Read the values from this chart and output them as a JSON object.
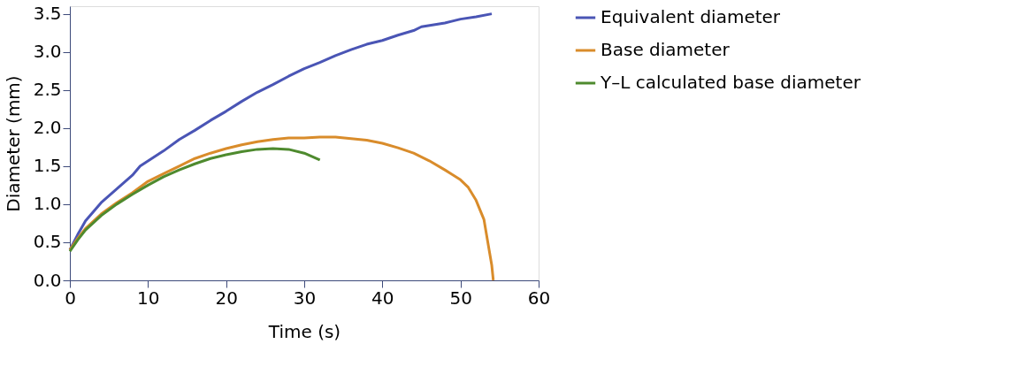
{
  "chart_data": {
    "type": "line",
    "xlabel": "Time (s)",
    "ylabel": "Diameter (mm)",
    "xlim": [
      0,
      60
    ],
    "xticks": [
      0,
      10,
      20,
      30,
      40,
      50,
      60
    ],
    "ylim": [
      0,
      3.6
    ],
    "yticks": [
      {
        "value": 0,
        "label": "0.0"
      },
      0.5,
      {
        "value": 1,
        "label": "1.0"
      },
      1.5,
      {
        "value": 2,
        "label": "2.0"
      },
      2.5,
      {
        "value": 3,
        "label": "3.0"
      },
      3.5
    ],
    "grid": false,
    "legend": "right",
    "marker": "none",
    "line_style": "solid",
    "series": [
      {
        "name": "Equivalent diameter",
        "color": "#4a55b5",
        "x": [
          0,
          1,
          2,
          4,
          6,
          8,
          9,
          12,
          14,
          16,
          18,
          20,
          22,
          24,
          26,
          28,
          30,
          32,
          34,
          36,
          38,
          40,
          42,
          44,
          45,
          48,
          50,
          52,
          54
        ],
        "values": [
          0.4,
          0.6,
          0.78,
          1.02,
          1.2,
          1.38,
          1.5,
          1.7,
          1.85,
          1.97,
          2.1,
          2.22,
          2.35,
          2.47,
          2.57,
          2.68,
          2.78,
          2.86,
          2.95,
          3.03,
          3.1,
          3.15,
          3.22,
          3.28,
          3.33,
          3.38,
          3.43,
          3.46,
          3.5
        ]
      },
      {
        "name": "Base diameter",
        "color": "#d98c2b",
        "x": [
          0,
          1,
          2,
          4,
          6,
          8,
          10,
          12,
          14,
          16,
          18,
          20,
          22,
          24,
          26,
          28,
          30,
          32,
          34,
          36,
          38,
          40,
          42,
          44,
          46,
          48,
          50,
          51,
          52,
          53,
          53.5,
          54,
          54.2
        ],
        "values": [
          0.4,
          0.55,
          0.68,
          0.87,
          1.02,
          1.15,
          1.3,
          1.4,
          1.5,
          1.6,
          1.67,
          1.73,
          1.78,
          1.82,
          1.85,
          1.87,
          1.87,
          1.88,
          1.88,
          1.86,
          1.84,
          1.8,
          1.74,
          1.67,
          1.57,
          1.45,
          1.32,
          1.22,
          1.05,
          0.8,
          0.5,
          0.2,
          0
        ]
      },
      {
        "name": "Y–L calculated base diameter",
        "color": "#4e8a2e",
        "x": [
          0,
          1,
          2,
          4,
          6,
          8,
          10,
          12,
          14,
          16,
          18,
          20,
          22,
          24,
          26,
          28,
          30,
          32
        ],
        "values": [
          0.38,
          0.53,
          0.66,
          0.85,
          1.0,
          1.13,
          1.25,
          1.36,
          1.45,
          1.53,
          1.6,
          1.65,
          1.69,
          1.72,
          1.73,
          1.72,
          1.67,
          1.58
        ]
      }
    ]
  }
}
